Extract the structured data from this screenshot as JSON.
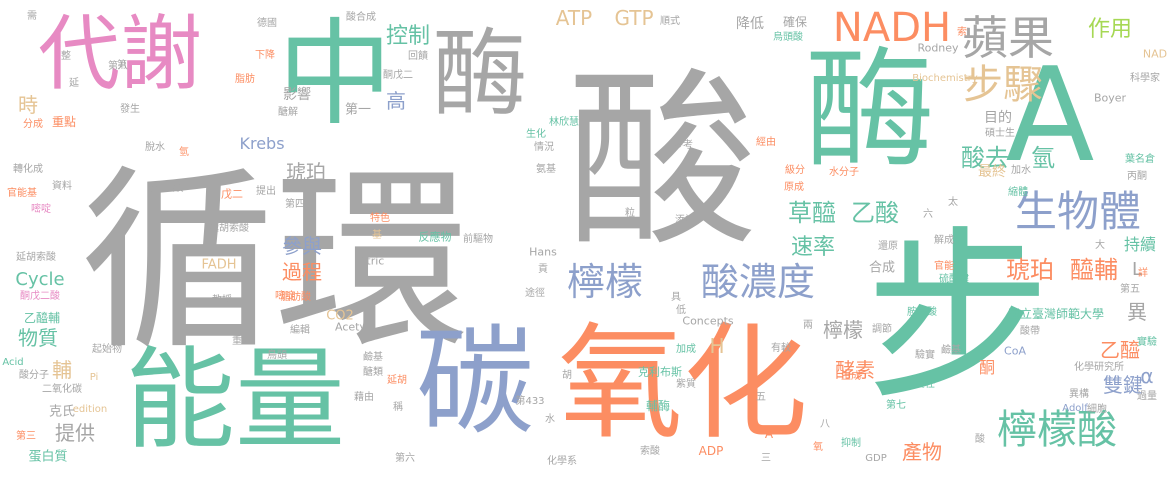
{
  "colors": {
    "gray": "#a6a6a6",
    "green": "#66c2a5",
    "orange": "#fc8d62",
    "blue": "#8da0cb",
    "pink": "#e78ac3",
    "lime": "#a6d854",
    "yellow": "#e5c494"
  },
  "words": [
    {
      "text": "循環",
      "color": "gray"
    },
    {
      "text": "酸",
      "color": "gray"
    },
    {
      "text": "酶",
      "color": "gray"
    },
    {
      "text": "中",
      "color": "green"
    },
    {
      "text": "代謝",
      "color": "pink"
    },
    {
      "text": "A",
      "color": "green"
    },
    {
      "text": "酶",
      "color": "green"
    },
    {
      "text": "步",
      "color": "green"
    },
    {
      "text": "能量",
      "color": "green"
    },
    {
      "text": "碳",
      "color": "blue"
    },
    {
      "text": "氧化",
      "color": "orange"
    },
    {
      "text": "NADH",
      "color": "orange"
    },
    {
      "text": "蘋果",
      "color": "gray"
    },
    {
      "text": "步驟",
      "color": "yellow"
    },
    {
      "text": "生物體",
      "color": "blue"
    },
    {
      "text": "檸檬",
      "color": "blue"
    },
    {
      "text": "酸濃度",
      "color": "blue"
    },
    {
      "text": "檸檬酸",
      "color": "green"
    },
    {
      "text": "草醯",
      "color": "green"
    },
    {
      "text": "乙酸",
      "color": "green"
    },
    {
      "text": "琥珀",
      "color": "orange"
    },
    {
      "text": "醯輔",
      "color": "orange"
    },
    {
      "text": "作用",
      "color": "lime"
    },
    {
      "text": "控制",
      "color": "green"
    },
    {
      "text": "ATP",
      "color": "yellow"
    },
    {
      "text": "GTP",
      "color": "yellow"
    },
    {
      "text": "酸去",
      "color": "green"
    },
    {
      "text": "氫",
      "color": "green"
    },
    {
      "text": "速率",
      "color": "green"
    },
    {
      "text": "琥珀",
      "color": "gray"
    },
    {
      "text": "參與",
      "color": "blue"
    },
    {
      "text": "過程",
      "color": "orange"
    },
    {
      "text": "時",
      "color": "yellow"
    },
    {
      "text": "高",
      "color": "blue"
    },
    {
      "text": "酵素",
      "color": "orange"
    },
    {
      "text": "產物",
      "color": "orange"
    },
    {
      "text": "檸檬",
      "color": "gray"
    },
    {
      "text": "雙鍵",
      "color": "blue"
    },
    {
      "text": "乙醯",
      "color": "orange"
    },
    {
      "text": "Cycle",
      "color": "green"
    },
    {
      "text": "物質",
      "color": "green"
    },
    {
      "text": "提供",
      "color": "gray"
    },
    {
      "text": "輔",
      "color": "yellow"
    },
    {
      "text": "H",
      "color": "yellow"
    },
    {
      "text": "Krebs",
      "color": "blue"
    },
    {
      "text": "異",
      "color": "gray"
    },
    {
      "text": "α",
      "color": "blue"
    },
    {
      "text": "L",
      "color": "gray"
    },
    {
      "text": "持續",
      "color": "green"
    },
    {
      "text": "目的",
      "color": "gray"
    },
    {
      "text": "最終",
      "color": "yellow"
    },
    {
      "text": "影響",
      "color": "gray"
    },
    {
      "text": "第一",
      "color": "gray"
    },
    {
      "text": "降低",
      "color": "gray"
    },
    {
      "text": "確保",
      "color": "gray"
    },
    {
      "text": "合成",
      "color": "gray"
    },
    {
      "text": "國立臺灣師範大學",
      "color": "green"
    },
    {
      "text": "化學研究所",
      "color": "gray"
    },
    {
      "text": "CO2",
      "color": "yellow"
    },
    {
      "text": "FADH",
      "color": "yellow"
    },
    {
      "text": "Citric",
      "color": "gray"
    },
    {
      "text": "Acetyl",
      "color": "gray"
    },
    {
      "text": "Hans",
      "color": "gray"
    },
    {
      "text": "Concepts",
      "color": "gray"
    },
    {
      "text": "Rodney",
      "color": "gray"
    },
    {
      "text": "Boyer",
      "color": "gray"
    },
    {
      "text": "Biochemistry",
      "color": "yellow"
    },
    {
      "text": "NAD",
      "color": "yellow"
    },
    {
      "text": "CoA",
      "color": "blue"
    },
    {
      "text": "ADP",
      "color": "orange"
    },
    {
      "text": "GDP",
      "color": "gray"
    },
    {
      "text": "edition",
      "color": "yellow"
    },
    {
      "text": "Acid",
      "color": "green"
    },
    {
      "text": "Adolf",
      "color": "blue"
    },
    {
      "text": "克氏",
      "color": "gray"
    },
    {
      "text": "蛋白質",
      "color": "green"
    },
    {
      "text": "乙醯輔",
      "color": "green"
    },
    {
      "text": "延胡索酸",
      "color": "gray"
    },
    {
      "text": "酮戊二酸",
      "color": "pink"
    },
    {
      "text": "起始物",
      "color": "gray"
    },
    {
      "text": "分成",
      "color": "orange"
    },
    {
      "text": "重點",
      "color": "orange"
    },
    {
      "text": "轉化成",
      "color": "gray"
    },
    {
      "text": "資料",
      "color": "gray"
    },
    {
      "text": "官能基",
      "color": "orange"
    },
    {
      "text": "嘧啶",
      "color": "pink"
    },
    {
      "text": "脫水",
      "color": "gray"
    },
    {
      "text": "氫",
      "color": "orange"
    },
    {
      "text": "戊二酸",
      "color": "gray"
    },
    {
      "text": "戊二",
      "color": "orange"
    },
    {
      "text": "提出",
      "color": "gray"
    },
    {
      "text": "第四",
      "color": "gray"
    },
    {
      "text": "延胡索酸",
      "color": "gray"
    },
    {
      "text": "特色",
      "color": "orange"
    },
    {
      "text": "基",
      "color": "yellow"
    },
    {
      "text": "反應物",
      "color": "green"
    },
    {
      "text": "前驅物",
      "color": "gray"
    },
    {
      "text": "脂肪酸",
      "color": "orange"
    },
    {
      "text": "教授",
      "color": "gray"
    },
    {
      "text": "嘧啶",
      "color": "orange"
    },
    {
      "text": "編輯",
      "color": "gray"
    },
    {
      "text": "重組",
      "color": "gray"
    },
    {
      "text": "鳥頭",
      "color": "gray"
    },
    {
      "text": "鹼基",
      "color": "gray"
    },
    {
      "text": "醣類",
      "color": "gray"
    },
    {
      "text": "藉由",
      "color": "gray"
    },
    {
      "text": "延胡",
      "color": "orange"
    },
    {
      "text": "稱",
      "color": "gray"
    },
    {
      "text": "第433",
      "color": "gray"
    },
    {
      "text": "化學系",
      "color": "gray"
    },
    {
      "text": "第六",
      "color": "gray"
    },
    {
      "text": "第三",
      "color": "orange"
    },
    {
      "text": "二氧化碳",
      "color": "gray"
    },
    {
      "text": "酸分子",
      "color": "gray"
    },
    {
      "text": "克利布斯",
      "color": "green"
    },
    {
      "text": "紫質",
      "color": "gray"
    },
    {
      "text": "輔酶",
      "color": "green"
    },
    {
      "text": "加成",
      "color": "green"
    },
    {
      "text": "第五",
      "color": "gray"
    },
    {
      "text": "第七",
      "color": "green"
    },
    {
      "text": "醣解",
      "color": "gray"
    },
    {
      "text": "脂肪",
      "color": "orange"
    },
    {
      "text": "下降",
      "color": "orange"
    },
    {
      "text": "延",
      "color": "gray"
    },
    {
      "text": "第八",
      "color": "gray"
    },
    {
      "text": "發生",
      "color": "gray"
    },
    {
      "text": "酮戊二",
      "color": "gray"
    },
    {
      "text": "酸合成",
      "color": "gray"
    },
    {
      "text": "德國",
      "color": "gray"
    },
    {
      "text": "需",
      "color": "gray"
    },
    {
      "text": "整",
      "color": "gray"
    },
    {
      "text": "林欣慧",
      "color": "green"
    },
    {
      "text": "回饋",
      "color": "gray"
    },
    {
      "text": "順式",
      "color": "gray"
    },
    {
      "text": "烏頭酸",
      "color": "green"
    },
    {
      "text": "生化",
      "color": "green"
    },
    {
      "text": "情況",
      "color": "gray"
    },
    {
      "text": "氨基",
      "color": "gray"
    },
    {
      "text": "參考",
      "color": "gray"
    },
    {
      "text": "經由",
      "color": "orange"
    },
    {
      "text": "碩士生",
      "color": "gray"
    },
    {
      "text": "科學家",
      "color": "gray"
    },
    {
      "text": "葉名倉",
      "color": "green"
    },
    {
      "text": "丙酮",
      "color": "gray"
    },
    {
      "text": "加水",
      "color": "gray"
    },
    {
      "text": "水分子",
      "color": "orange"
    },
    {
      "text": "原成",
      "color": "orange"
    },
    {
      "text": "添補",
      "color": "gray"
    },
    {
      "text": "粒",
      "color": "gray"
    },
    {
      "text": "縮體",
      "color": "green"
    },
    {
      "text": "解成",
      "color": "gray"
    },
    {
      "text": "還原",
      "color": "gray"
    },
    {
      "text": "官能",
      "color": "orange"
    },
    {
      "text": "硫酯鍵",
      "color": "green"
    },
    {
      "text": "胺基酸",
      "color": "green"
    },
    {
      "text": "鹼基",
      "color": "gray"
    },
    {
      "text": "調節",
      "color": "gray"
    },
    {
      "text": "酸帶",
      "color": "gray"
    },
    {
      "text": "驗實",
      "color": "gray"
    },
    {
      "text": "實驗",
      "color": "green"
    },
    {
      "text": "異構",
      "color": "gray"
    },
    {
      "text": "細胞",
      "color": "gray"
    },
    {
      "text": "過量",
      "color": "gray"
    },
    {
      "text": "有較",
      "color": "gray"
    },
    {
      "text": "生成",
      "color": "orange"
    },
    {
      "text": "責任",
      "color": "green"
    },
    {
      "text": "抑制",
      "color": "green"
    },
    {
      "text": "三",
      "color": "gray"
    },
    {
      "text": "五",
      "color": "gray"
    },
    {
      "text": "八",
      "color": "gray"
    },
    {
      "text": "六",
      "color": "gray"
    },
    {
      "text": "太",
      "color": "gray"
    },
    {
      "text": "兩",
      "color": "gray"
    },
    {
      "text": "低",
      "color": "gray"
    },
    {
      "text": "具",
      "color": "gray"
    },
    {
      "text": "貢",
      "color": "gray"
    },
    {
      "text": "途徑",
      "color": "gray"
    },
    {
      "text": "水",
      "color": "gray"
    },
    {
      "text": "胡",
      "color": "gray"
    },
    {
      "text": "索酸",
      "color": "gray"
    },
    {
      "text": "酮",
      "color": "orange"
    },
    {
      "text": "酸",
      "color": "gray"
    },
    {
      "text": "大",
      "color": "gray"
    },
    {
      "text": "索",
      "color": "orange"
    },
    {
      "text": "A",
      "color": "orange"
    },
    {
      "text": "氧",
      "color": "orange"
    },
    {
      "text": "Pi",
      "color": "yellow"
    },
    {
      "text": "級分",
      "color": "orange"
    },
    {
      "text": "詳",
      "color": "orange"
    },
    {
      "text": "第",
      "color": "gray"
    }
  ]
}
